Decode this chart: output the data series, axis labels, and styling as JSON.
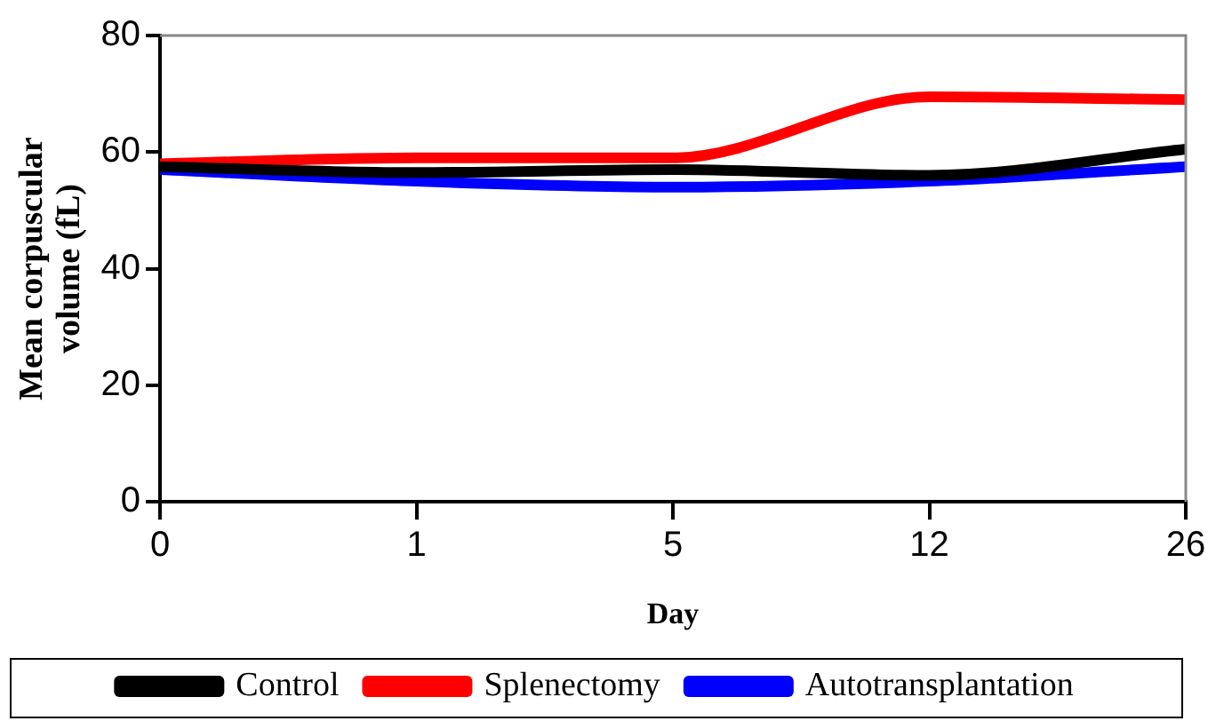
{
  "chart_data": {
    "type": "line",
    "xlabel": "Day",
    "ylabel": "Mean corpuscular volume (fL)",
    "categories": [
      "0",
      "1",
      "5",
      "12",
      "26"
    ],
    "series": [
      {
        "name": "Control",
        "color": "#000000",
        "values": [
          57.5,
          56.5,
          57,
          56,
          60.5
        ]
      },
      {
        "name": "Splenectomy",
        "color": "#ff0000",
        "values": [
          58,
          59,
          59,
          69.5,
          69
        ]
      },
      {
        "name": "Autotransplantation",
        "color": "#0000ff",
        "values": [
          57,
          55,
          54,
          55,
          57.5
        ]
      }
    ],
    "ylim": [
      0,
      80
    ],
    "yticks": [
      0,
      20,
      40,
      60,
      80
    ],
    "grid": false,
    "legend": "bottom",
    "marker": "none",
    "line_style": "solid"
  }
}
